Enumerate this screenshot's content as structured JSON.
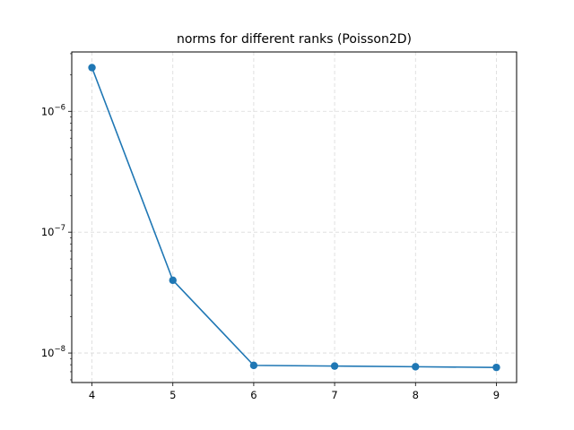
{
  "chart_data": {
    "type": "line",
    "title": "norms for different ranks (Poisson2D)",
    "xlabel": "",
    "ylabel": "",
    "yscale": "log",
    "grid": true,
    "grid_style": "dashed",
    "x": [
      4,
      5,
      6,
      7,
      8,
      9
    ],
    "xticks": [
      4,
      5,
      6,
      7,
      8,
      9
    ],
    "xlim": [
      3.75,
      9.25
    ],
    "ylim": [
      5.7e-09,
      3.1e-06
    ],
    "ytick_exponents": [
      -6,
      -7,
      -8
    ],
    "series": [
      {
        "values": [
          2.3e-06,
          4e-08,
          7.9e-09,
          7.8e-09,
          7.7e-09,
          7.6e-09
        ],
        "color": "#1f77b4",
        "marker": "circle"
      }
    ]
  }
}
